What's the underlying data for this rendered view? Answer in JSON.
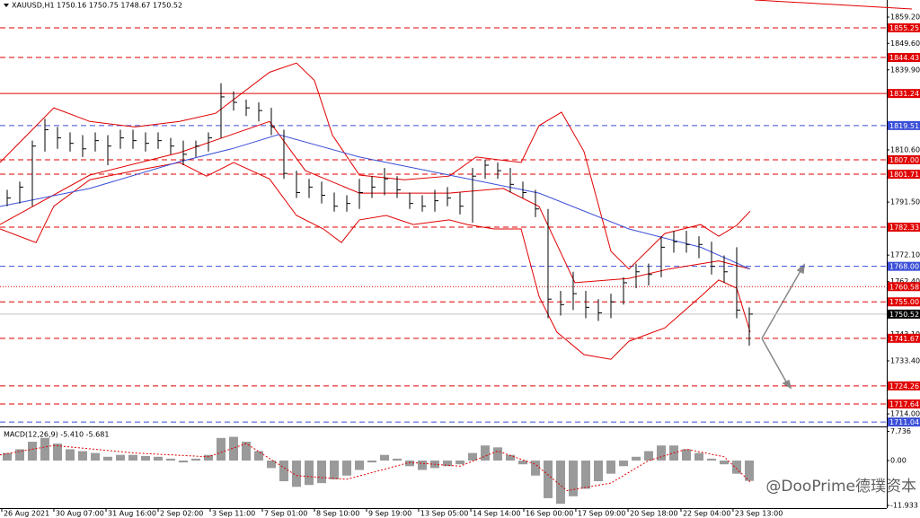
{
  "chart_data": [
    {
      "type": "ohlc",
      "title": "XAUUSD,H1 1750.16 1750.75 1748.67 1750.52",
      "color": "#000000",
      "high": [
        1796,
        1799,
        1814,
        1822,
        1819,
        1817,
        1816,
        1817,
        1816,
        1818,
        1818,
        1817,
        1817,
        1815,
        1814,
        1814,
        1817,
        1835,
        1832,
        1829,
        1828,
        1826,
        1818,
        1803,
        1800,
        1799,
        1795,
        1794,
        1800,
        1801,
        1804,
        1801,
        1795,
        1794,
        1796,
        1797,
        1795,
        1804,
        1807,
        1806,
        1804,
        1799,
        1796,
        1789,
        1759,
        1766,
        1759,
        1756,
        1758,
        1764,
        1769,
        1769,
        1779,
        1781,
        1781,
        1779,
        1777,
        1772,
        1775,
        1753
      ],
      "low": [
        1790,
        1791,
        1790,
        1810,
        1811,
        1810,
        1808,
        1810,
        1805,
        1811,
        1811,
        1810,
        1811,
        1809,
        1805,
        1808,
        1810,
        1815,
        1825,
        1823,
        1821,
        1816,
        1800,
        1793,
        1793,
        1791,
        1788,
        1788,
        1789,
        1793,
        1794,
        1793,
        1789,
        1788,
        1788,
        1790,
        1787,
        1784,
        1800,
        1800,
        1795,
        1793,
        1786,
        1749,
        1750,
        1752,
        1749,
        1748,
        1749,
        1754,
        1760,
        1761,
        1764,
        1773,
        1773,
        1771,
        1765,
        1762,
        1749,
        1739
      ],
      "close": [
        1793,
        1797,
        1812,
        1818,
        1815,
        1813,
        1811,
        1814,
        1812,
        1815,
        1814,
        1813,
        1814,
        1812,
        1809,
        1812,
        1815,
        1830,
        1828,
        1826,
        1825,
        1819,
        1802,
        1795,
        1797,
        1794,
        1790,
        1791,
        1795,
        1797,
        1800,
        1796,
        1791,
        1790,
        1792,
        1793,
        1790,
        1801,
        1805,
        1803,
        1798,
        1795,
        1789,
        1756,
        1754,
        1758,
        1753,
        1751,
        1755,
        1762,
        1766,
        1765,
        1775,
        1777,
        1776,
        1776,
        1768,
        1766,
        1752,
        1750.52
      ],
      "overlays": [
        {
          "color": "#e00000",
          "x": [
            -0.57,
            1.57,
            3.71,
            6.57,
            10.14,
            13.71,
            16.57,
            20.86,
            23,
            24.43,
            25.86,
            28,
            31.57,
            35.14,
            37.29,
            40.86,
            42.29,
            44.07,
            45.86,
            48,
            49.43,
            52.29,
            55.14,
            56.57,
            58,
            59.07
          ],
          "values": [
            1806,
            1816,
            1826,
            1821,
            1819,
            1821,
            1824,
            1839,
            1842.4,
            1836,
            1816,
            1801.4,
            1799.7,
            1801,
            1808,
            1806,
            1819.5,
            1824.4,
            1810,
            1773.5,
            1767,
            1780,
            1783.3,
            1779,
            1783,
            1788.2
          ]
        },
        {
          "color": "#e00000",
          "x": [
            -0.57,
            2.29,
            3.71,
            6.57,
            10.14,
            13.71,
            15.86,
            18,
            20.86,
            23,
            25.14,
            26.57,
            28,
            30.14,
            32.29,
            35.14,
            36.57,
            38.71,
            40.86,
            42.29,
            43.71,
            45.86,
            48,
            49.43,
            52.29,
            55.14,
            56.57,
            58,
            59.07
          ],
          "values": [
            1781.7,
            1776.7,
            1790,
            1799.7,
            1803,
            1806,
            1801,
            1806,
            1800,
            1786.6,
            1781.7,
            1776.7,
            1785,
            1786.6,
            1783.3,
            1785,
            1783.3,
            1781.7,
            1781.7,
            1757,
            1743.9,
            1735.7,
            1734,
            1740.6,
            1745.5,
            1757,
            1763,
            1760,
            1743.9
          ]
        },
        {
          "color": "#e00000",
          "x": [
            -0.57,
            6.57,
            13.71,
            20.86,
            23.71,
            28,
            35.14,
            39.43,
            42.29,
            45.14,
            49.43,
            52.57,
            56.57,
            59.07
          ],
          "values": [
            1783.3,
            1801.4,
            1809.6,
            1821,
            1803,
            1794.8,
            1794.8,
            1796.5,
            1789.9,
            1762,
            1763.6,
            1767,
            1770,
            1767
          ]
        },
        {
          "color": "#3b4fd8",
          "x": [
            -0.57,
            6.57,
            13.71,
            18,
            21.57,
            28,
            35.14,
            42.29,
            49.43,
            55.14,
            59.07
          ],
          "values": [
            1789.9,
            1796.5,
            1806.3,
            1811.2,
            1816.2,
            1808,
            1801.4,
            1794.8,
            1781.7,
            1775,
            1767
          ]
        }
      ],
      "levels": [
        {
          "value": 1855.25,
          "color": "#e00000",
          "style": "dashed"
        },
        {
          "value": 1844.43,
          "color": "#e00000",
          "style": "dashed"
        },
        {
          "value": 1831.24,
          "color": "#e00000",
          "style": "solid"
        },
        {
          "value": 1819.51,
          "color": "#3b4fd8",
          "style": "dashed"
        },
        {
          "value": 1807,
          "label": "1807.00",
          "color": "#e00000",
          "style": "dashed"
        },
        {
          "value": 1801.71,
          "color": "#e00000",
          "style": "dashed"
        },
        {
          "value": 1782.33,
          "color": "#e00000",
          "style": "dashed"
        },
        {
          "value": 1768,
          "label": "1768.00",
          "color": "#3b4fd8",
          "style": "dashed"
        },
        {
          "value": 1760.58,
          "color": "#e00000",
          "style": "dotted"
        },
        {
          "value": 1755,
          "label": "1755.00",
          "color": "#e00000",
          "style": "dashed"
        },
        {
          "value": 1750.52,
          "color": "#000000",
          "style": "price"
        },
        {
          "value": 1741.67,
          "color": "#e00000",
          "style": "dashed"
        },
        {
          "value": 1724.26,
          "color": "#e00000",
          "style": "dashed"
        },
        {
          "value": 1717.64,
          "color": "#e00000",
          "style": "dashed"
        },
        {
          "value": 1711.04,
          "color": "#3b4fd8",
          "style": "dashed"
        }
      ],
      "xlim": [
        -0.571,
        69.93
      ],
      "xticks": [
        {
          "value": -0.43,
          "label": "26 Aug 2021"
        },
        {
          "value": 3.71,
          "label": "30 Aug 07:00"
        },
        {
          "value": 7.86,
          "label": "31 Aug 16:00"
        },
        {
          "value": 12,
          "label": "2 Sep 02:00"
        },
        {
          "value": 16.14,
          "label": "3 Sep 11:00"
        },
        {
          "value": 20.29,
          "label": "7 Sep 01:00"
        },
        {
          "value": 24.43,
          "label": "8 Sep 10:00"
        },
        {
          "value": 28.57,
          "label": "9 Sep 19:00"
        },
        {
          "value": 32.71,
          "label": "13 Sep 05:00"
        },
        {
          "value": 36.86,
          "label": "14 Sep 14:00"
        },
        {
          "value": 41.07,
          "label": "16 Sep 00:00"
        },
        {
          "value": 45.21,
          "label": "17 Sep 09:00"
        },
        {
          "value": 49.36,
          "label": "20 Sep 18:00"
        },
        {
          "value": 53.57,
          "label": "22 Sep 04:00"
        },
        {
          "value": 57.71,
          "label": "23 Sep 13:00"
        }
      ],
      "ylim": [
        1709.75,
        1865.45
      ],
      "yticks": [
        {
          "value": 1859.2,
          "label": "1859.20"
        },
        {
          "value": 1849.6,
          "label": "1849.60"
        },
        {
          "value": 1839.9,
          "label": "1839.90"
        },
        {
          "value": 1810.6,
          "label": "1810.60"
        },
        {
          "value": 1791.5,
          "label": "1791.50"
        },
        {
          "value": 1772.1,
          "label": "1772.10"
        },
        {
          "value": 1762.4,
          "label": "1762.40"
        },
        {
          "value": 1743.1,
          "label": "1743.10"
        },
        {
          "value": 1733.4,
          "label": "1733.40"
        },
        {
          "value": 1714,
          "label": "1714.00"
        }
      ]
    },
    {
      "type": "bar",
      "title": "MACD(12,26,9) -5.410 -5.681",
      "color": "#9a9a9a",
      "values": [
        2,
        3,
        5,
        6,
        4.5,
        3,
        2.5,
        2,
        1,
        1.5,
        1.5,
        1.2,
        1,
        0.5,
        -0.5,
        0.5,
        1.5,
        6,
        6.3,
        5,
        2.5,
        -2,
        -5.5,
        -7,
        -6.5,
        -6,
        -5,
        -4,
        -2.5,
        -0.5,
        1.5,
        0.5,
        -1.5,
        -2.5,
        -2,
        -1.5,
        -1,
        2,
        4,
        3.5,
        1.5,
        -1,
        -4,
        -10,
        -11.5,
        -9.5,
        -7.5,
        -5.5,
        -3.5,
        -1.5,
        1,
        2.5,
        4,
        4,
        3,
        2,
        0.5,
        -1,
        -3.5,
        -5.41
      ],
      "signal": {
        "color": "#e00000",
        "x": [
          -0.57,
          3.71,
          10.14,
          16,
          19,
          23,
          27,
          32,
          36,
          39,
          42,
          44.5,
          48,
          51,
          54,
          57,
          59.07
        ],
        "values": [
          1.5,
          4,
          2,
          1,
          4.5,
          -4,
          -5,
          -0.5,
          -1.5,
          2.5,
          -1,
          -8,
          -6,
          0,
          3,
          1,
          -5.68
        ]
      },
      "xlim": [
        -0.571,
        69.93
      ],
      "ylim": [
        -12.65,
        8.35
      ],
      "yticks": [
        7.736,
        {
          "value": 0,
          "label": "0.00"
        },
        -11.933
      ]
    }
  ],
  "watermark": "@DooPrime德璞资本"
}
